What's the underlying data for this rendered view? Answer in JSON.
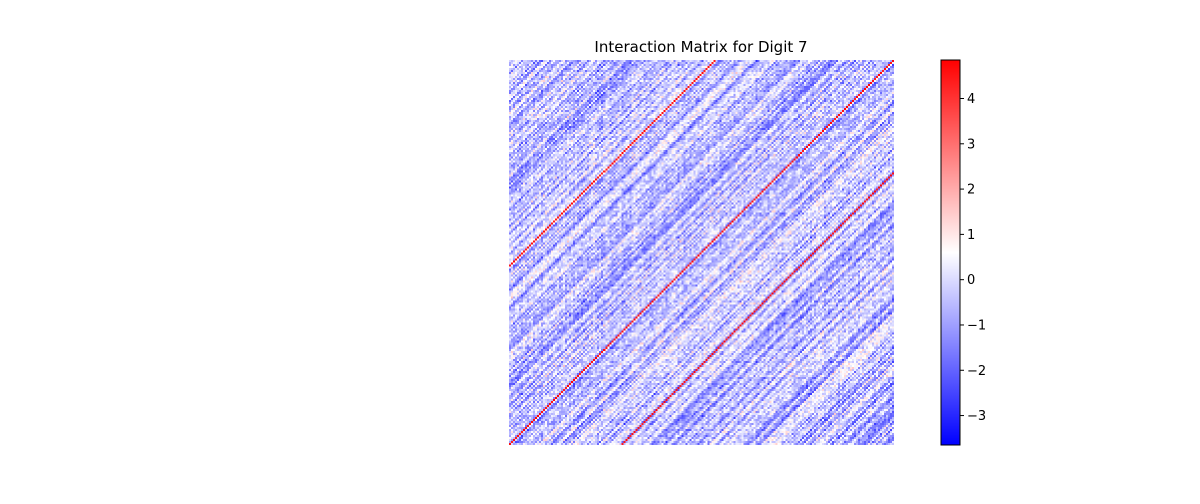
{
  "chart_data": {
    "type": "heatmap",
    "title": "Interaction Matrix for Digit 7",
    "xlabel": "",
    "ylabel": "",
    "axes_visible": false,
    "colormap": "bwr",
    "value_range": [
      -3.65,
      4.85
    ],
    "colorbar": {
      "ticks": [
        4,
        3,
        2,
        1,
        0,
        -1,
        -2,
        -3
      ],
      "tick_labels": [
        "4",
        "3",
        "2",
        "1",
        "0",
        "−1",
        "−2",
        "−3"
      ]
    },
    "grid": false,
    "legend": "none"
  }
}
